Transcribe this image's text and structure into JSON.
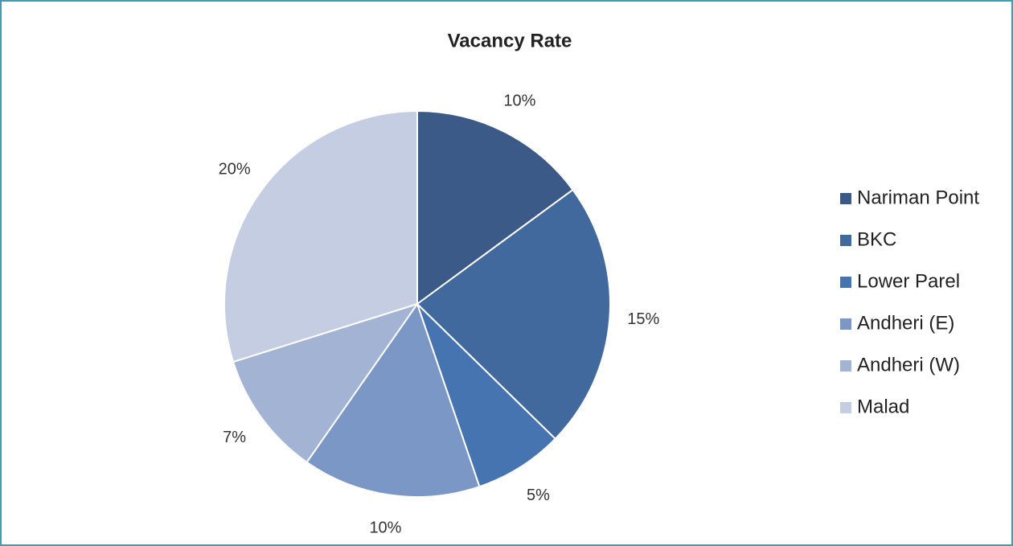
{
  "chart_data": {
    "type": "pie",
    "title": "Vacancy Rate",
    "categories": [
      "Nariman Point",
      "BKC",
      "Lower Parel",
      "Andheri (E)",
      "Andheri (W)",
      "Malad"
    ],
    "values": [
      10,
      15,
      5,
      10,
      7,
      20
    ],
    "value_labels": [
      "10%",
      "15%",
      "5%",
      "10%",
      "7%",
      "20%"
    ],
    "colors": [
      "#3b5a88",
      "#41699e",
      "#4674b0",
      "#7a97c5",
      "#a2b3d4",
      "#c5cde2"
    ],
    "legend": "right"
  }
}
